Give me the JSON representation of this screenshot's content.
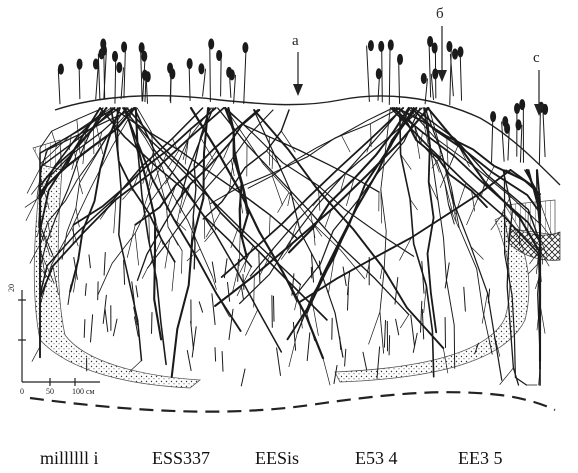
{
  "figure": {
    "markers": [
      {
        "id": "a",
        "label": "a"
      },
      {
        "id": "b",
        "label": "б"
      },
      {
        "id": "c",
        "label": "c"
      }
    ],
    "scale": {
      "vertical_label": "20",
      "horizontal_labels": [
        "0",
        "50",
        "100 см"
      ]
    }
  },
  "legend": {
    "items": [
      "millllll i",
      "ESS337",
      "EESis",
      "E53 4",
      "EE3 5"
    ]
  }
}
